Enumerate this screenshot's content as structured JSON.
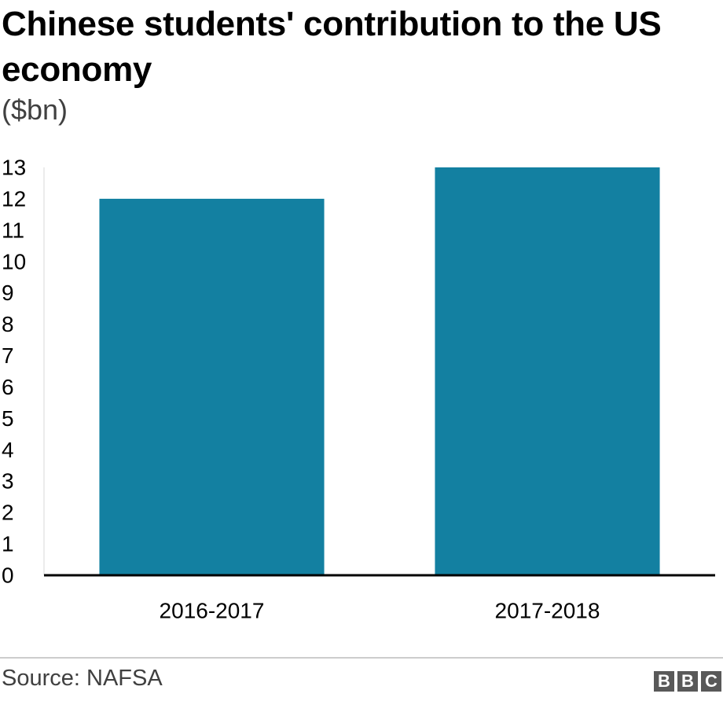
{
  "header": {
    "title": "Chinese students' contribution to the US economy",
    "subtitle": "($bn)"
  },
  "footer": {
    "source": "Source: NAFSA",
    "logo_letters": [
      "B",
      "B",
      "C"
    ]
  },
  "chart_data": {
    "type": "bar",
    "title": "Chinese students' contribution to the US economy",
    "subtitle": "($bn)",
    "categories": [
      "2016-2017",
      "2017-2018"
    ],
    "values": [
      12,
      13
    ],
    "xlabel": "",
    "ylabel": "",
    "ylim": [
      0,
      13
    ],
    "yticks": [
      0,
      1,
      2,
      3,
      4,
      5,
      6,
      7,
      8,
      9,
      10,
      11,
      12,
      13
    ],
    "grid": false,
    "legend": "none",
    "colors": {
      "bar": "#1380a1",
      "axis": "#000000",
      "text": "#000000"
    }
  }
}
